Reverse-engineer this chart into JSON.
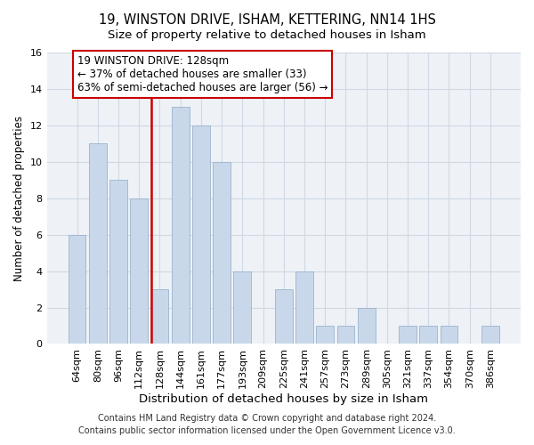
{
  "title": "19, WINSTON DRIVE, ISHAM, KETTERING, NN14 1HS",
  "subtitle": "Size of property relative to detached houses in Isham",
  "xlabel": "Distribution of detached houses by size in Isham",
  "ylabel": "Number of detached properties",
  "categories": [
    "64sqm",
    "80sqm",
    "96sqm",
    "112sqm",
    "128sqm",
    "144sqm",
    "161sqm",
    "177sqm",
    "193sqm",
    "209sqm",
    "225sqm",
    "241sqm",
    "257sqm",
    "273sqm",
    "289sqm",
    "305sqm",
    "321sqm",
    "337sqm",
    "354sqm",
    "370sqm",
    "386sqm"
  ],
  "values": [
    6,
    11,
    9,
    8,
    3,
    13,
    12,
    10,
    4,
    0,
    3,
    4,
    1,
    1,
    2,
    0,
    1,
    1,
    1,
    0,
    1
  ],
  "bar_color": "#c8d8ea",
  "bar_edge_color": "#9ab4cc",
  "vline_x_index": 4,
  "vline_color": "#cc0000",
  "ylim": [
    0,
    16
  ],
  "yticks": [
    0,
    2,
    4,
    6,
    8,
    10,
    12,
    14,
    16
  ],
  "annotation_line1": "19 WINSTON DRIVE: 128sqm",
  "annotation_line2": "← 37% of detached houses are smaller (33)",
  "annotation_line3": "63% of semi-detached houses are larger (56) →",
  "annotation_box_color": "#ffffff",
  "annotation_box_edge": "#cc0000",
  "footer_line1": "Contains HM Land Registry data © Crown copyright and database right 2024.",
  "footer_line2": "Contains public sector information licensed under the Open Government Licence v3.0.",
  "title_fontsize": 10.5,
  "subtitle_fontsize": 9.5,
  "xlabel_fontsize": 9.5,
  "ylabel_fontsize": 8.5,
  "tick_fontsize": 8,
  "annotation_fontsize": 8.5,
  "footer_fontsize": 7,
  "background_color": "#ffffff",
  "plot_bg_color": "#eef2f7",
  "grid_color": "#d0d8e4"
}
